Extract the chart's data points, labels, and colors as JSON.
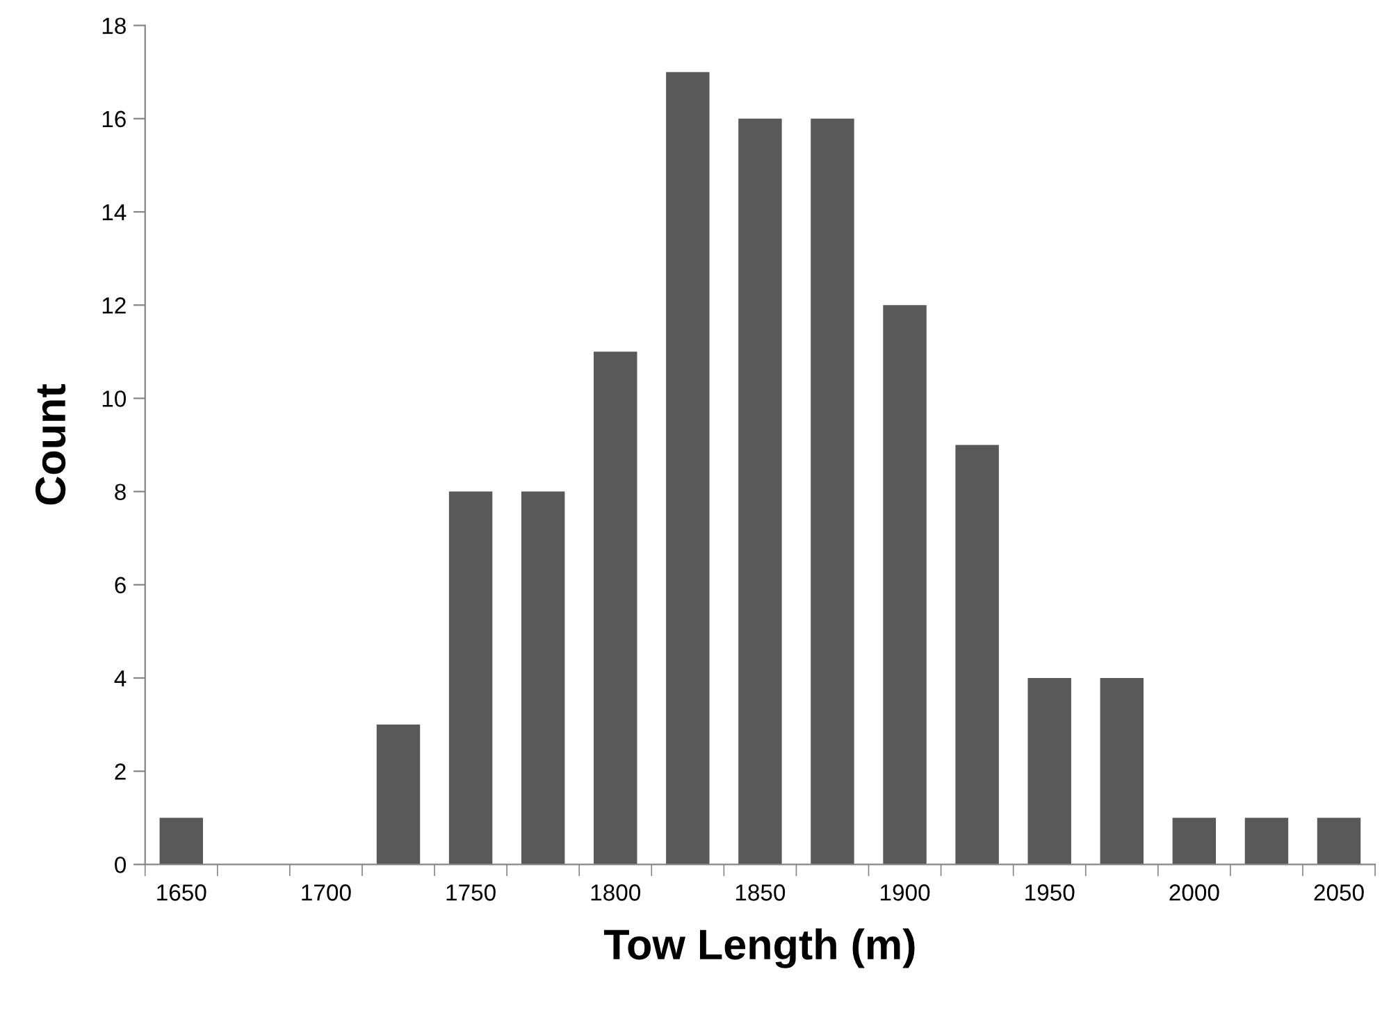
{
  "chart_data": {
    "type": "bar",
    "xlabel": "Tow Length (m)",
    "ylabel": "Count",
    "categories": [
      "1650",
      null,
      "1700",
      null,
      "1750",
      null,
      "1800",
      null,
      "1850",
      null,
      "1900",
      null,
      "1950",
      null,
      "2000",
      null,
      "2050"
    ],
    "values": [
      1,
      0,
      0,
      3,
      8,
      8,
      11,
      17,
      16,
      16,
      12,
      9,
      4,
      4,
      1,
      1,
      1
    ],
    "color": "#595959",
    "ylim": [
      0,
      18
    ],
    "yticks": [
      0,
      2,
      4,
      6,
      8,
      10,
      12,
      14,
      16,
      18
    ],
    "grid": false
  }
}
